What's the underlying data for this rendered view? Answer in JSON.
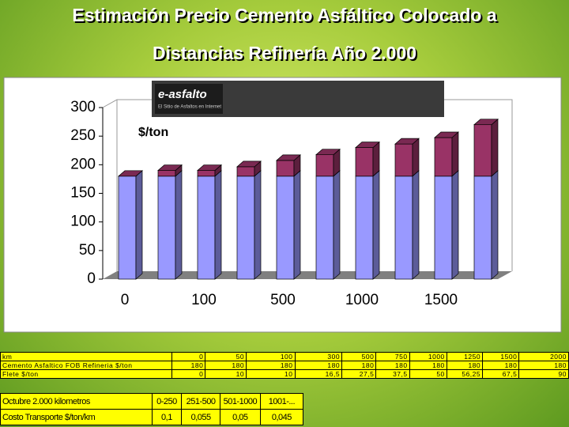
{
  "title": [
    "Estimación Precio Cemento Asfáltico Colocado a",
    "Distancias Refinería Año 2.000"
  ],
  "logo": {
    "name": "e-asfalto",
    "tagline": "El Sitio de Asfaltos en Internet"
  },
  "chart_data": {
    "type": "bar3d_stacked",
    "y_label": "$/ton",
    "categories": [
      "0",
      null,
      "100",
      null,
      "500",
      null,
      "1000",
      null,
      "1500",
      null
    ],
    "series": [
      {
        "name": "Cemento Asfaltico FOB Refineria $/ton",
        "color": "#9999ff",
        "values": [
          180,
          180,
          180,
          180,
          180,
          180,
          180,
          180,
          180,
          180
        ]
      },
      {
        "name": "Flete $/ton",
        "color": "#993366",
        "values": [
          0,
          10,
          10,
          16.5,
          27.5,
          37.5,
          50,
          56.25,
          67.5,
          90
        ]
      }
    ],
    "ylim": [
      0,
      300
    ],
    "yticks": [
      0,
      50,
      100,
      150,
      200,
      250,
      300
    ]
  },
  "table": {
    "rows": [
      [
        "km",
        "0",
        "50",
        "100",
        "300",
        "500",
        "750",
        "1000",
        "1250",
        "1500",
        "2000"
      ],
      [
        "Cemento Asfaltico FOB Refineria $/ton",
        "180",
        "180",
        "180",
        "180",
        "180",
        "180",
        "180",
        "180",
        "180",
        "180"
      ],
      [
        "Flete $/ton",
        "0",
        "10",
        "10",
        "16,5",
        "27,5",
        "37,5",
        "50",
        "56,25",
        "67,5",
        "90"
      ]
    ]
  },
  "cost_table": {
    "rows": [
      [
        "Octubre 2.000   kilometros",
        "0-250",
        "251-500",
        "501-1000",
        "1001-..."
      ],
      [
        "Costo Transporte $/ton/km",
        "0,1",
        "0,055",
        "0,05",
        "0,045"
      ]
    ]
  }
}
